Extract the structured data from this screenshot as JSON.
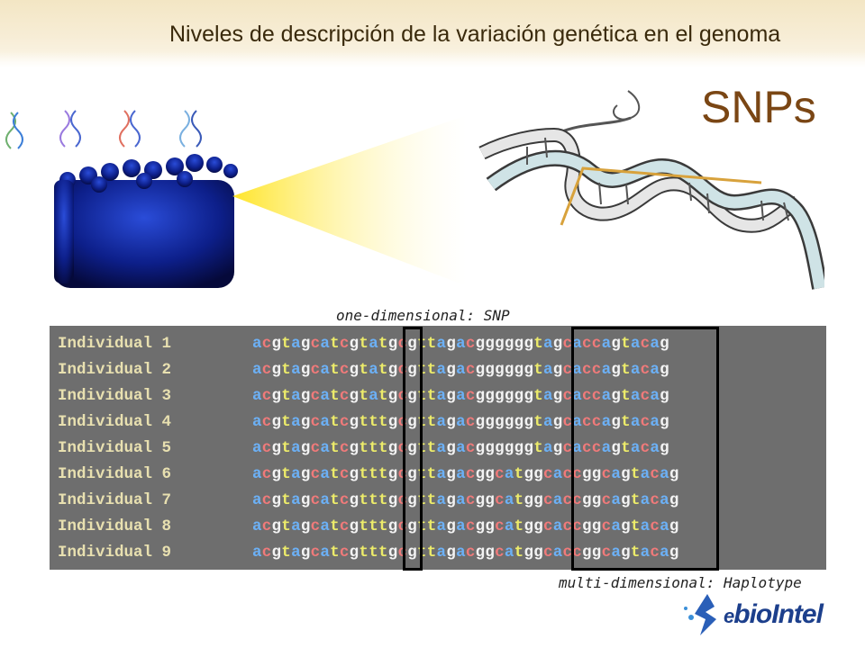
{
  "header": {
    "title": "Niveles de descripción de la variación genética en el genoma"
  },
  "slide": {
    "heading": "SNPs"
  },
  "labels": {
    "snp": "one-dimensional: SNP",
    "haplotype": "multi-dimensional: Haplotype"
  },
  "rows": [
    {
      "label": "Individual 1",
      "sequence": "acgtagcatcgtatgcgttagacggggggtagcaccagtacag"
    },
    {
      "label": "Individual 2",
      "sequence": "acgtagcatcgtatgcgttagacggggggtagcaccagtacag"
    },
    {
      "label": "Individual 3",
      "sequence": "acgtagcatcgtatgcgttagacggggggtagcaccagtacag"
    },
    {
      "label": "Individual 4",
      "sequence": "acgtagcatcgtttgcgttagacggggggtagcaccagtacag"
    },
    {
      "label": "Individual 5",
      "sequence": "acgtagcatcgtttgcgttagacggggggtagcaccagtacag"
    },
    {
      "label": "Individual 6",
      "sequence": "acgtagcatcgtttgcgttagacggcatggcaccggcagtacag"
    },
    {
      "label": "Individual 7",
      "sequence": "acgtagcatcgtttgcgttagacggcatggcaccggcagtacag"
    },
    {
      "label": "Individual 8",
      "sequence": "acgtagcatcgtttgcgttagacggcatggcaccggcagtacag"
    },
    {
      "label": "Individual 9",
      "sequence": "acgtagcatcgtttgcgttagacggcatggcaccggcagtacag"
    }
  ],
  "logo": {
    "prefix": "e",
    "name": "bioIntel"
  },
  "colors": {
    "base_a": "#6cb0f5",
    "base_c": "#f07a7a",
    "base_g": "#f3f3f3",
    "base_t": "#eceb6a",
    "label": "#e8e0b0",
    "panel": "#6e6e6e",
    "heading": "#7a4614"
  }
}
